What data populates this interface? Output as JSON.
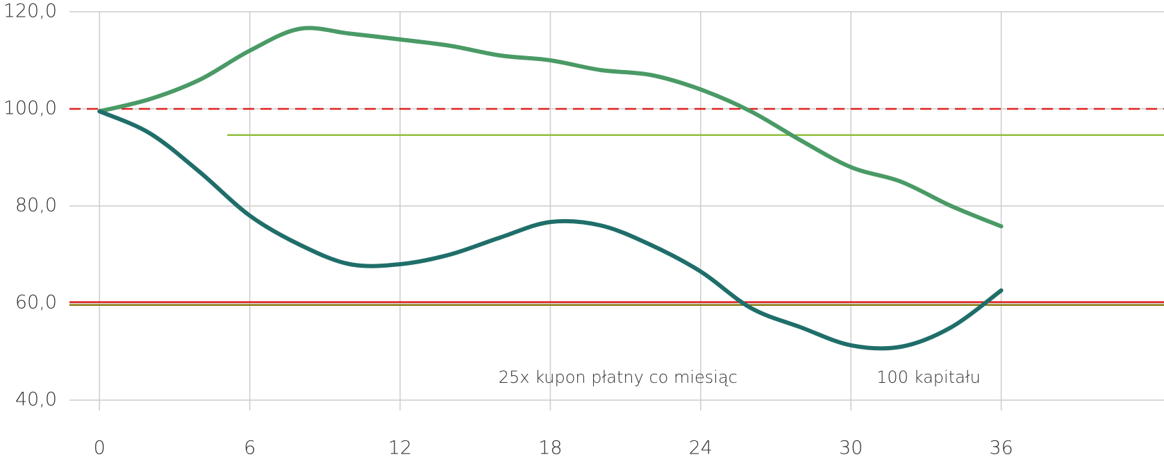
{
  "chart_data": {
    "type": "line",
    "x": [
      0,
      2,
      4,
      6,
      8,
      10,
      12,
      14,
      16,
      18,
      20,
      22,
      24,
      26,
      28,
      30,
      32,
      34,
      36
    ],
    "series": [
      {
        "color": "#4a9a66",
        "values": [
          99.5,
          102,
          106,
          112,
          116.5,
          115.5,
          114.3,
          113,
          111,
          110,
          108,
          107,
          104,
          99.5,
          93.5,
          88,
          85,
          80,
          75.8
        ]
      },
      {
        "color": "#1f6e6a",
        "values": [
          99.5,
          95,
          87,
          78,
          72,
          68,
          68,
          70,
          73.5,
          76.7,
          76,
          72,
          66.5,
          59,
          55,
          51.3,
          51,
          55,
          62.6
        ]
      }
    ],
    "reference_lines": [
      {
        "value": 100,
        "color": "#e02020",
        "dashed": true,
        "from": -1.2
      },
      {
        "value": 94.6,
        "color": "#8fbf3a",
        "dashed": false,
        "from": 5.1
      },
      {
        "value": 60.2,
        "color": "#e02020",
        "dashed": false,
        "from": -1.2
      },
      {
        "value": 59.6,
        "color": "#8a7a10",
        "dashed": false,
        "from": -1.2
      }
    ],
    "annotations": [
      {
        "text": "25x kupon płatny co miesiąc",
        "x": 20.7,
        "y": 44.6
      },
      {
        "text": "100 kapitału",
        "x": 33.1,
        "y": 44.6
      }
    ],
    "xlim": [
      -1.2,
      42.5
    ],
    "ylim": [
      40,
      120
    ],
    "xticks": [
      0,
      6,
      12,
      18,
      24,
      30,
      36
    ],
    "yticks": [
      {
        "value": 40,
        "label": "40,0"
      },
      {
        "value": 60,
        "label": "60,0"
      },
      {
        "value": 80,
        "label": "80,0"
      },
      {
        "value": 100,
        "label": "100,0"
      },
      {
        "value": 120,
        "label": "120,0"
      }
    ],
    "grid": true
  }
}
